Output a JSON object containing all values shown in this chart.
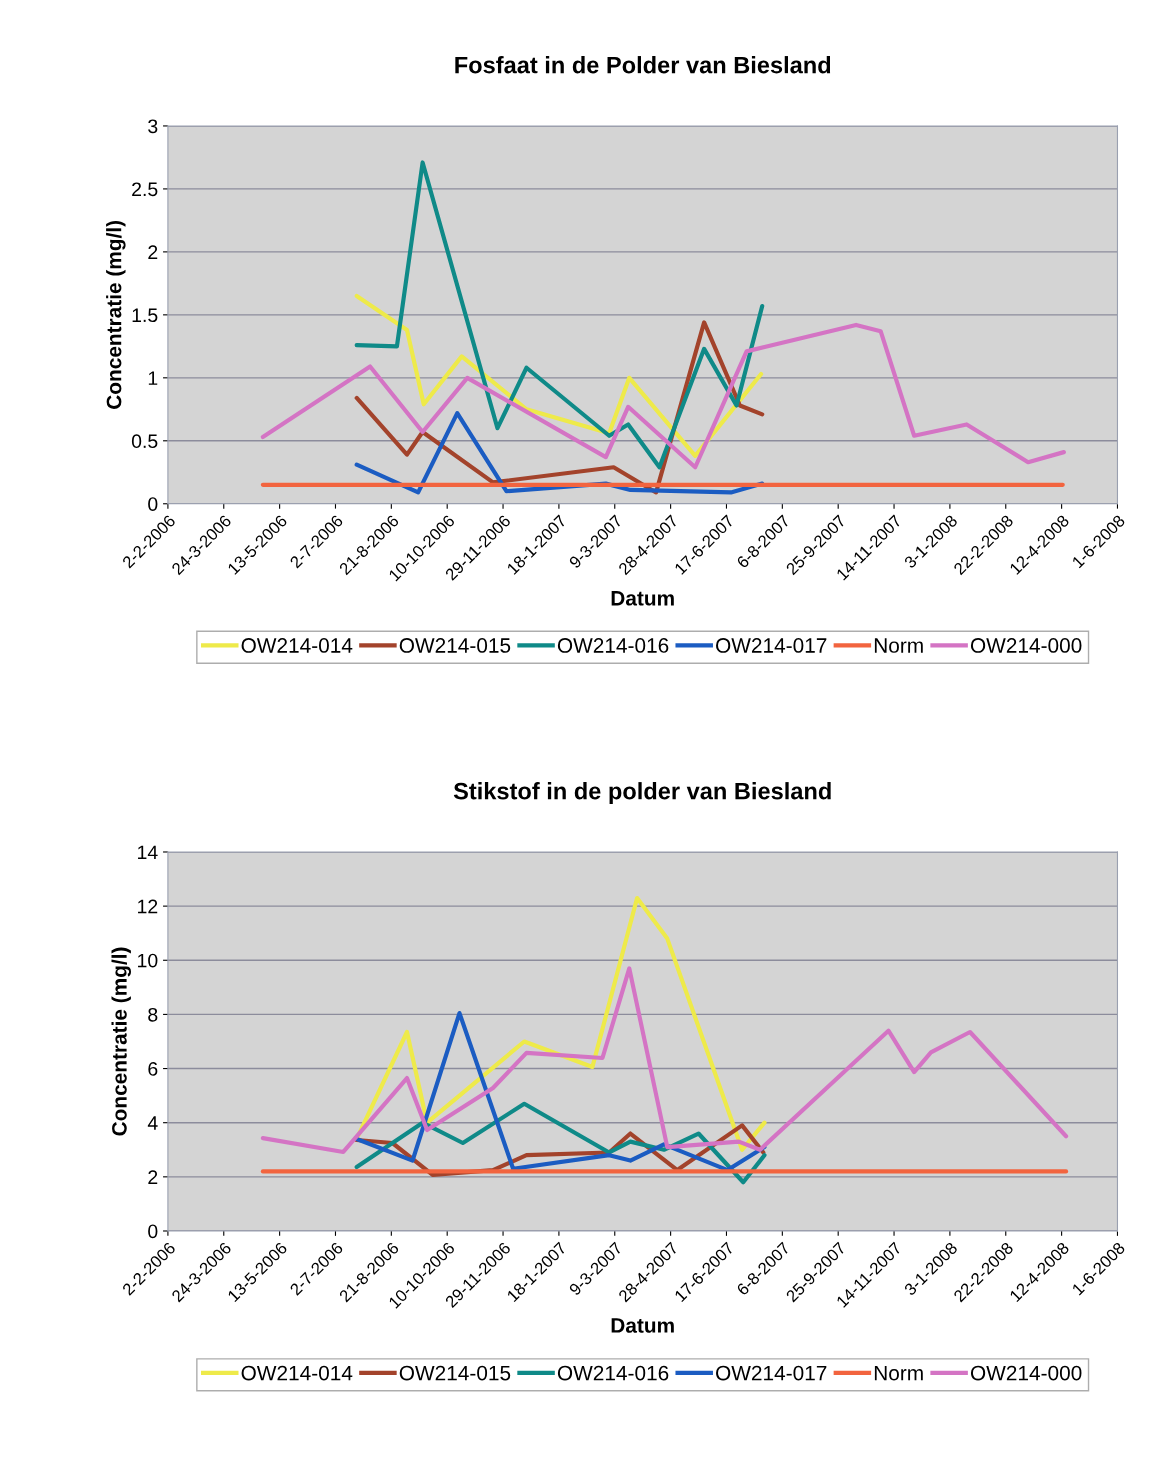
{
  "chart_data": [
    {
      "type": "line",
      "title": "Fosfaat in de Polder van Biesland",
      "xlabel": "Datum",
      "ylabel": "Concentratie (mg/l)",
      "xlim": [
        "2006-02-02",
        "2008-06-01"
      ],
      "xticks": [
        {
          "value": "2006-02-02",
          "label": "2-2-2006"
        },
        {
          "value": "2006-03-24",
          "label": "24-3-2006"
        },
        {
          "value": "2006-05-13",
          "label": "13-5-2006"
        },
        {
          "value": "2006-07-02",
          "label": "2-7-2006"
        },
        {
          "value": "2006-08-21",
          "label": "21-8-2006"
        },
        {
          "value": "2006-10-10",
          "label": "10-10-2006"
        },
        {
          "value": "2006-11-29",
          "label": "29-11-2006"
        },
        {
          "value": "2007-01-18",
          "label": "18-1-2007"
        },
        {
          "value": "2007-03-09",
          "label": "9-3-2007"
        },
        {
          "value": "2007-04-28",
          "label": "28-4-2007"
        },
        {
          "value": "2007-06-17",
          "label": "17-6-2007"
        },
        {
          "value": "2007-08-06",
          "label": "6-8-2007"
        },
        {
          "value": "2007-09-25",
          "label": "25-9-2007"
        },
        {
          "value": "2007-11-14",
          "label": "14-11-2007"
        },
        {
          "value": "2008-01-03",
          "label": "3-1-2008"
        },
        {
          "value": "2008-02-22",
          "label": "22-2-2008"
        },
        {
          "value": "2008-04-12",
          "label": "12-4-2008"
        },
        {
          "value": "2008-06-01",
          "label": "1-6-2008"
        }
      ],
      "ylim": [
        0,
        3
      ],
      "yticks": [
        0,
        0.5,
        1,
        1.5,
        2,
        2.5,
        3
      ],
      "grid": "y",
      "legend": "bottom",
      "line_style": "solid",
      "series": [
        {
          "name": "OW214-014",
          "color": "#eeea4a",
          "x": [
            "2006-07-21",
            "2006-09-04",
            "2006-09-19",
            "2006-10-23",
            "2006-12-20",
            "2007-03-04",
            "2007-03-22",
            "2007-05-20",
            "2007-07-18"
          ],
          "values": [
            1.65,
            1.38,
            0.79,
            1.17,
            0.75,
            0.56,
            1.0,
            0.38,
            1.03
          ]
        },
        {
          "name": "OW214-015",
          "color": "#a3432b",
          "x": [
            "2006-07-21",
            "2006-09-04",
            "2006-09-18",
            "2006-11-20",
            "2007-03-08",
            "2007-04-15",
            "2007-05-28",
            "2007-06-29",
            "2007-07-19"
          ],
          "values": [
            0.84,
            0.39,
            0.57,
            0.17,
            0.29,
            0.09,
            1.44,
            0.78,
            0.71
          ]
        },
        {
          "name": "OW214-016",
          "color": "#0f8a88",
          "x": [
            "2006-07-21",
            "2006-08-26",
            "2006-09-18",
            "2006-11-24",
            "2006-12-20",
            "2007-03-04",
            "2007-03-21",
            "2007-04-18",
            "2007-05-28",
            "2007-06-26",
            "2007-07-19"
          ],
          "values": [
            1.26,
            1.25,
            2.71,
            0.6,
            1.08,
            0.54,
            0.63,
            0.29,
            1.23,
            0.78,
            1.57
          ]
        },
        {
          "name": "OW214-017",
          "color": "#1b5cc2",
          "x": [
            "2006-07-21",
            "2006-09-14",
            "2006-10-19",
            "2006-12-02",
            "2007-03-01",
            "2007-03-23",
            "2007-06-21",
            "2007-07-19"
          ],
          "values": [
            0.31,
            0.09,
            0.72,
            0.1,
            0.16,
            0.11,
            0.09,
            0.16
          ]
        },
        {
          "name": "Norm",
          "color": "#f2643f",
          "x": [
            "2006-04-28",
            "2008-04-13"
          ],
          "values": [
            0.15,
            0.15
          ]
        },
        {
          "name": "OW214-000",
          "color": "#d474c4",
          "x": [
            "2006-04-28",
            "2006-08-02",
            "2006-09-18",
            "2006-10-28",
            "2007-03-01",
            "2007-03-21",
            "2007-05-20",
            "2007-07-05",
            "2007-10-11",
            "2007-11-02",
            "2007-12-02",
            "2008-01-18",
            "2008-03-13",
            "2008-04-14"
          ],
          "values": [
            0.53,
            1.09,
            0.57,
            1.0,
            0.37,
            0.77,
            0.29,
            1.21,
            1.42,
            1.37,
            0.54,
            0.63,
            0.33,
            0.41
          ]
        }
      ]
    },
    {
      "type": "line",
      "title": "Stikstof in de polder van Biesland",
      "xlabel": "Datum",
      "ylabel": "Concentratie (mg/l)",
      "xlim": [
        "2006-02-02",
        "2008-06-01"
      ],
      "xticks": [
        {
          "value": "2006-02-02",
          "label": "2-2-2006"
        },
        {
          "value": "2006-03-24",
          "label": "24-3-2006"
        },
        {
          "value": "2006-05-13",
          "label": "13-5-2006"
        },
        {
          "value": "2006-07-02",
          "label": "2-7-2006"
        },
        {
          "value": "2006-08-21",
          "label": "21-8-2006"
        },
        {
          "value": "2006-10-10",
          "label": "10-10-2006"
        },
        {
          "value": "2006-11-29",
          "label": "29-11-2006"
        },
        {
          "value": "2007-01-18",
          "label": "18-1-2007"
        },
        {
          "value": "2007-03-09",
          "label": "9-3-2007"
        },
        {
          "value": "2007-04-28",
          "label": "28-4-2007"
        },
        {
          "value": "2007-06-17",
          "label": "17-6-2007"
        },
        {
          "value": "2007-08-06",
          "label": "6-8-2007"
        },
        {
          "value": "2007-09-25",
          "label": "25-9-2007"
        },
        {
          "value": "2007-11-14",
          "label": "14-11-2007"
        },
        {
          "value": "2008-01-03",
          "label": "3-1-2008"
        },
        {
          "value": "2008-02-22",
          "label": "22-2-2008"
        },
        {
          "value": "2008-04-12",
          "label": "12-4-2008"
        },
        {
          "value": "2008-06-01",
          "label": "1-6-2008"
        }
      ],
      "ylim": [
        0,
        14
      ],
      "yticks": [
        0,
        2,
        4,
        6,
        8,
        10,
        12,
        14
      ],
      "grid": "y",
      "legend": "bottom",
      "line_style": "solid",
      "series": [
        {
          "name": "OW214-014",
          "color": "#eeea4a",
          "x": [
            "2006-07-21",
            "2006-09-04",
            "2006-09-22",
            "2006-12-18",
            "2007-02-17",
            "2007-03-29",
            "2007-04-25",
            "2007-07-01",
            "2007-07-21"
          ],
          "values": [
            3.4,
            7.35,
            4.0,
            7.0,
            6.06,
            12.3,
            10.8,
            3.0,
            4.0
          ]
        },
        {
          "name": "OW214-015",
          "color": "#a3432b",
          "x": [
            "2006-07-21",
            "2006-08-22",
            "2006-09-27",
            "2006-11-20",
            "2006-12-20",
            "2007-03-04",
            "2007-03-23",
            "2007-05-04",
            "2007-07-01",
            "2007-07-20"
          ],
          "values": [
            3.36,
            3.25,
            2.07,
            2.25,
            2.8,
            2.9,
            3.6,
            2.25,
            3.9,
            2.9
          ]
        },
        {
          "name": "OW214-016",
          "color": "#0f8a88",
          "x": [
            "2006-07-21",
            "2006-09-18",
            "2006-10-24",
            "2006-12-18",
            "2007-03-04",
            "2007-03-23",
            "2007-04-22",
            "2007-05-23",
            "2007-07-02",
            "2007-07-21"
          ],
          "values": [
            2.36,
            4.0,
            3.25,
            4.7,
            2.9,
            3.3,
            3.0,
            3.6,
            1.8,
            2.8
          ]
        },
        {
          "name": "OW214-017",
          "color": "#1b5cc2",
          "x": [
            "2006-07-21",
            "2006-09-09",
            "2006-10-21",
            "2006-12-08",
            "2007-03-04",
            "2007-03-23",
            "2007-04-22",
            "2007-06-18",
            "2007-07-21"
          ],
          "values": [
            3.4,
            2.6,
            8.05,
            2.3,
            2.8,
            2.6,
            3.2,
            2.25,
            3.1
          ]
        },
        {
          "name": "Norm",
          "color": "#f2643f",
          "x": [
            "2006-04-28",
            "2008-04-16"
          ],
          "values": [
            2.2,
            2.2
          ]
        },
        {
          "name": "OW214-000",
          "color": "#d474c4",
          "x": [
            "2006-04-28",
            "2006-07-09",
            "2006-09-04",
            "2006-09-22",
            "2006-11-20",
            "2006-12-20",
            "2007-02-26",
            "2007-03-22",
            "2007-04-25",
            "2007-06-28",
            "2007-07-17",
            "2007-11-09",
            "2007-12-02",
            "2007-12-17",
            "2008-01-21",
            "2008-04-16"
          ],
          "values": [
            3.43,
            2.92,
            5.65,
            3.73,
            5.28,
            6.58,
            6.39,
            9.7,
            3.1,
            3.3,
            3.0,
            7.4,
            5.87,
            6.6,
            7.35,
            3.5
          ]
        }
      ]
    }
  ]
}
